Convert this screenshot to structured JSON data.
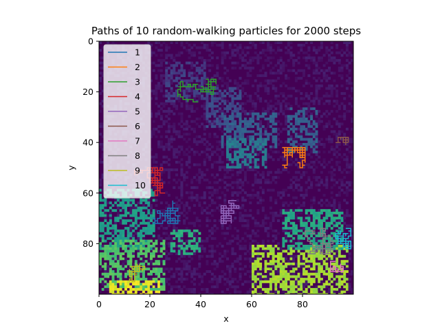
{
  "chart_data": {
    "type": "heatmap",
    "title": "Paths of 10 random-walking particles for 2000 steps",
    "xlabel": "x",
    "ylabel": "y",
    "xlim": [
      0,
      100
    ],
    "ylim": [
      100,
      0
    ],
    "y_inverted": true,
    "xticks": [
      "0",
      "20",
      "40",
      "60",
      "80"
    ],
    "yticks": [
      "0",
      "20",
      "40",
      "60",
      "80"
    ],
    "xtick_values": [
      0,
      20,
      40,
      60,
      80
    ],
    "ytick_values": [
      0,
      20,
      40,
      60,
      80
    ],
    "legend_position": "top-left",
    "grid": false,
    "background_colormap": "viridis",
    "background_regions": [
      {
        "x": [
          26,
          42
        ],
        "y": [
          8,
          24
        ],
        "level": 0.18
      },
      {
        "x": [
          42,
          56
        ],
        "y": [
          18,
          34
        ],
        "level": 0.22
      },
      {
        "x": [
          48,
          70
        ],
        "y": [
          28,
          42
        ],
        "level": 0.3
      },
      {
        "x": [
          50,
          66
        ],
        "y": [
          38,
          50
        ],
        "level": 0.42
      },
      {
        "x": [
          74,
          86
        ],
        "y": [
          26,
          44
        ],
        "level": 0.3
      },
      {
        "x": [
          0,
          22
        ],
        "y": [
          58,
          82
        ],
        "level": 0.55
      },
      {
        "x": [
          0,
          26
        ],
        "y": [
          78,
          98
        ],
        "level": 0.72
      },
      {
        "x": [
          28,
          40
        ],
        "y": [
          74,
          84
        ],
        "level": 0.62
      },
      {
        "x": [
          60,
          98
        ],
        "y": [
          80,
          100
        ],
        "level": 0.86
      },
      {
        "x": [
          4,
          24
        ],
        "y": [
          94,
          100
        ],
        "level": 0.96
      },
      {
        "x": [
          72,
          96
        ],
        "y": [
          66,
          82
        ],
        "level": 0.6
      }
    ],
    "series": [
      {
        "name": "1",
        "color": "#1f77b4",
        "center": [
          28,
          66
        ],
        "spread": [
          8,
          6
        ],
        "steps": 200,
        "seed": 11
      },
      {
        "name": "2",
        "color": "#ff7f0e",
        "center": [
          73,
          50
        ],
        "spread": [
          8,
          8
        ],
        "steps": 200,
        "seed": 22
      },
      {
        "name": "3",
        "color": "#2ca02c",
        "center": [
          38,
          24
        ],
        "spread": [
          8,
          9
        ],
        "steps": 200,
        "seed": 33
      },
      {
        "name": "4",
        "color": "#d62728",
        "center": [
          26,
          60
        ],
        "spread": [
          12,
          10
        ],
        "steps": 200,
        "seed": 44
      },
      {
        "name": "5",
        "color": "#9467bd",
        "center": [
          54,
          63
        ],
        "spread": [
          6,
          9
        ],
        "steps": 200,
        "seed": 55
      },
      {
        "name": "6",
        "color": "#8c564b",
        "center": [
          95,
          40
        ],
        "spread": [
          3,
          2
        ],
        "steps": 60,
        "seed": 66
      },
      {
        "name": "7",
        "color": "#e377c2",
        "center": [
          93,
          87
        ],
        "spread": [
          3,
          4
        ],
        "steps": 60,
        "seed": 77
      },
      {
        "name": "8",
        "color": "#7f7f7f",
        "center": [
          85,
          76
        ],
        "spread": [
          7,
          8
        ],
        "steps": 200,
        "seed": 88
      },
      {
        "name": "9",
        "color": "#bcbd22",
        "center": [
          18,
          90
        ],
        "spread": [
          6,
          6
        ],
        "steps": 90,
        "seed": 99
      },
      {
        "name": "10",
        "color": "#17becf",
        "center": [
          96,
          79
        ],
        "spread": [
          3,
          7
        ],
        "steps": 120,
        "seed": 111
      }
    ]
  }
}
